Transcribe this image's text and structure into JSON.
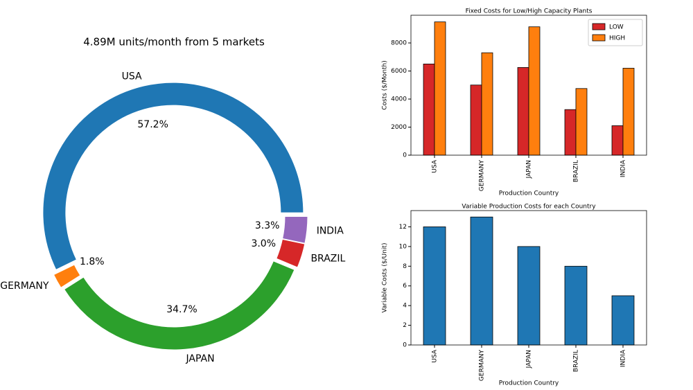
{
  "chart_data": [
    {
      "type": "donut",
      "title": "4.89M units/month from 5 markets",
      "categories": [
        "USA",
        "GERMANY",
        "JAPAN",
        "BRAZIL",
        "INDIA"
      ],
      "values": [
        57.2,
        1.8,
        34.7,
        3.0,
        3.3
      ],
      "value_labels": [
        "57.2%",
        "1.8%",
        "34.7%",
        "3.0%",
        "3.3%"
      ],
      "colors": [
        "#1f77b4",
        "#ff7f0e",
        "#2ca02c",
        "#d62728",
        "#9467bd"
      ]
    },
    {
      "type": "bar",
      "title": "Fixed Costs for Low/High Capacity Plants",
      "x_label": "Production Country",
      "y_label": "Costs ($/Month)",
      "categories": [
        "USA",
        "GERMANY",
        "JAPAN",
        "BRAZIL",
        "INDIA"
      ],
      "series": [
        {
          "name": "LOW",
          "color": "#d62728",
          "values": [
            6500,
            5000,
            6250,
            3250,
            2100
          ]
        },
        {
          "name": "HIGH",
          "color": "#ff7f0e",
          "values": [
            9500,
            7300,
            9150,
            4750,
            6200
          ]
        }
      ],
      "ylim": [
        0,
        9975
      ],
      "yticks": [
        0,
        2000,
        4000,
        6000,
        8000
      ],
      "grid": false,
      "legend": "upper right"
    },
    {
      "type": "bar",
      "title": "Variable Production Costs for each Country",
      "x_label": "Production Country",
      "y_label": "Variable Costs ($/Unit)",
      "categories": [
        "USA",
        "GERMANY",
        "JAPAN",
        "BRAZIL",
        "INDIA"
      ],
      "values": [
        12,
        13,
        10,
        8,
        5
      ],
      "color": "#1f77b4",
      "ylim": [
        0,
        13.65
      ],
      "yticks": [
        0,
        2,
        4,
        6,
        8,
        10,
        12
      ],
      "grid": false
    }
  ]
}
